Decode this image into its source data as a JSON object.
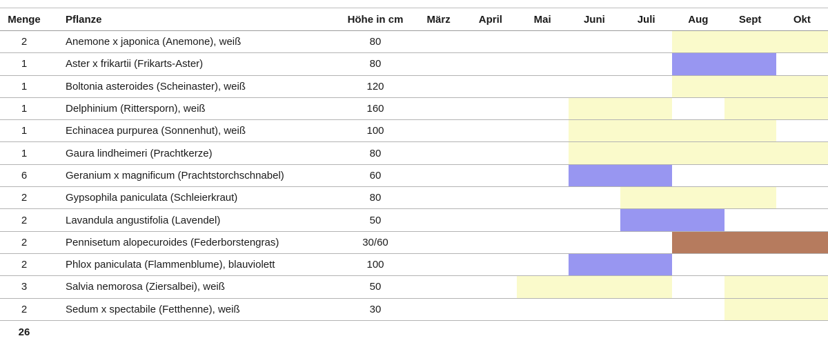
{
  "chart_data": {
    "type": "table",
    "description": "Planting table with bloom-period gantt bars per month",
    "column_headers": {
      "menge": "Menge",
      "pflanze": "Pflanze",
      "hoehe": "Höhe in cm"
    },
    "months": [
      "März",
      "April",
      "Mai",
      "Juni",
      "Juli",
      "Aug",
      "Sept",
      "Okt"
    ],
    "colors": {
      "yellow": "#FAFACB",
      "blue": "#9896F1",
      "brown": "#B67B5E"
    },
    "rows": [
      {
        "menge": "2",
        "pflanze": "Anemone x japonica (Anemone), weiß",
        "hoehe": "80",
        "bars": [
          {
            "start": "Aug",
            "end": "Okt",
            "color": "yellow"
          }
        ]
      },
      {
        "menge": "1",
        "pflanze": "Aster x frikartii (Frikarts-Aster)",
        "hoehe": "80",
        "bars": [
          {
            "start": "Aug",
            "end": "Sept",
            "color": "blue"
          }
        ]
      },
      {
        "menge": "1",
        "pflanze": "Boltonia asteroides (Scheinaster), weiß",
        "hoehe": "120",
        "bars": [
          {
            "start": "Aug",
            "end": "Okt",
            "color": "yellow"
          }
        ]
      },
      {
        "menge": "1",
        "pflanze": "Delphinium (Rittersporn), weiß",
        "hoehe": "160",
        "bars": [
          {
            "start": "Juni",
            "end": "Juli",
            "color": "yellow"
          },
          {
            "start": "Sept",
            "end": "Okt",
            "color": "yellow"
          }
        ]
      },
      {
        "menge": "1",
        "pflanze": "Echinacea purpurea (Sonnenhut), weiß",
        "hoehe": "100",
        "bars": [
          {
            "start": "Juni",
            "end": "Sept",
            "color": "yellow"
          }
        ]
      },
      {
        "menge": "1",
        "pflanze": "Gaura lindheimeri (Prachtkerze)",
        "hoehe": "80",
        "bars": [
          {
            "start": "Juni",
            "end": "Okt",
            "color": "yellow"
          }
        ]
      },
      {
        "menge": "6",
        "pflanze": "Geranium x magnificum (Prachtstorchschnabel)",
        "hoehe": "60",
        "bars": [
          {
            "start": "Juni",
            "end": "Juli",
            "color": "blue"
          }
        ]
      },
      {
        "menge": "2",
        "pflanze": "Gypsophila paniculata (Schleierkraut)",
        "hoehe": "80",
        "bars": [
          {
            "start": "Juli",
            "end": "Sept",
            "color": "yellow"
          }
        ]
      },
      {
        "menge": "2",
        "pflanze": "Lavandula angustifolia (Lavendel)",
        "hoehe": "50",
        "bars": [
          {
            "start": "Juli",
            "end": "Aug",
            "color": "blue"
          }
        ]
      },
      {
        "menge": "2",
        "pflanze": "Pennisetum alopecuroides (Federborstengras)",
        "hoehe": "30/60",
        "bars": [
          {
            "start": "Aug",
            "end": "Okt",
            "color": "brown"
          }
        ]
      },
      {
        "menge": "2",
        "pflanze": "Phlox paniculata (Flammenblume), blauviolett",
        "hoehe": "100",
        "bars": [
          {
            "start": "Juni",
            "end": "Juli",
            "color": "blue"
          }
        ]
      },
      {
        "menge": "3",
        "pflanze": "Salvia nemorosa (Ziersalbei), weiß",
        "hoehe": "50",
        "bars": [
          {
            "start": "Mai",
            "end": "Juli",
            "color": "yellow"
          },
          {
            "start": "Sept",
            "end": "Okt",
            "color": "yellow"
          }
        ]
      },
      {
        "menge": "2",
        "pflanze": "Sedum x spectabile (Fetthenne), weiß",
        "hoehe": "30",
        "bars": [
          {
            "start": "Sept",
            "end": "Okt",
            "color": "yellow"
          }
        ]
      }
    ],
    "total_menge": "26"
  }
}
